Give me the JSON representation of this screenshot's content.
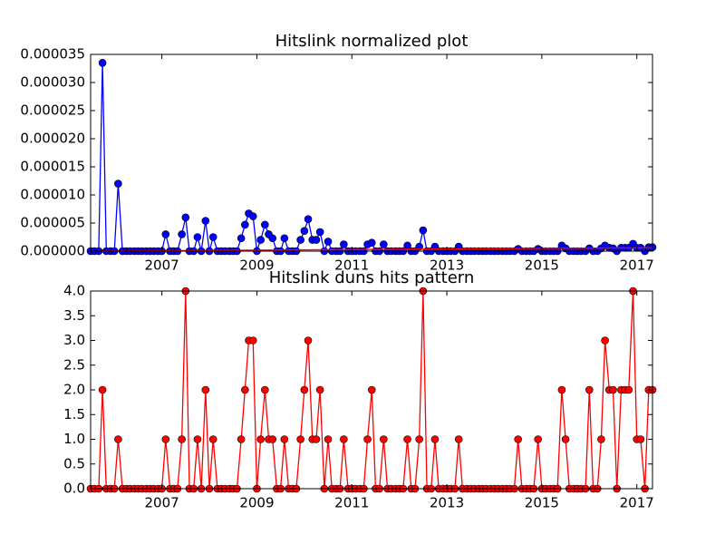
{
  "chart_data": [
    {
      "type": "line",
      "title": "Hitslink normalized plot",
      "x": [
        2005.5,
        2005.58,
        2005.67,
        2005.75,
        2005.83,
        2005.92,
        2006.0,
        2006.08,
        2006.17,
        2006.25,
        2006.33,
        2006.42,
        2006.5,
        2006.58,
        2006.67,
        2006.75,
        2006.83,
        2006.92,
        2007.0,
        2007.08,
        2007.17,
        2007.25,
        2007.33,
        2007.42,
        2007.5,
        2007.58,
        2007.67,
        2007.75,
        2007.83,
        2007.92,
        2008.0,
        2008.08,
        2008.17,
        2008.25,
        2008.33,
        2008.42,
        2008.5,
        2008.58,
        2008.67,
        2008.75,
        2008.83,
        2008.92,
        2009.0,
        2009.08,
        2009.17,
        2009.25,
        2009.33,
        2009.42,
        2009.5,
        2009.58,
        2009.67,
        2009.75,
        2009.83,
        2009.92,
        2010.0,
        2010.08,
        2010.17,
        2010.25,
        2010.33,
        2010.42,
        2010.5,
        2010.58,
        2010.67,
        2010.75,
        2010.83,
        2010.92,
        2011.0,
        2011.08,
        2011.17,
        2011.25,
        2011.33,
        2011.42,
        2011.5,
        2011.58,
        2011.67,
        2011.75,
        2011.83,
        2011.92,
        2012.0,
        2012.08,
        2012.17,
        2012.25,
        2012.33,
        2012.42,
        2012.5,
        2012.58,
        2012.67,
        2012.75,
        2012.83,
        2012.92,
        2013.0,
        2013.08,
        2013.17,
        2013.25,
        2013.33,
        2013.42,
        2013.5,
        2013.58,
        2013.67,
        2013.75,
        2013.83,
        2013.92,
        2014.0,
        2014.08,
        2014.17,
        2014.25,
        2014.33,
        2014.42,
        2014.5,
        2014.58,
        2014.67,
        2014.75,
        2014.83,
        2014.92,
        2015.0,
        2015.08,
        2015.17,
        2015.25,
        2015.33,
        2015.42,
        2015.5,
        2015.58,
        2015.67,
        2015.75,
        2015.83,
        2015.92,
        2016.0,
        2016.08,
        2016.17,
        2016.25,
        2016.33,
        2016.42,
        2016.5,
        2016.58,
        2016.67,
        2016.75,
        2016.83,
        2016.92,
        2017.0,
        2017.08,
        2017.17,
        2017.25,
        2017.33
      ],
      "series": [
        {
          "color": "#0000ff",
          "marker": true,
          "values": [
            0,
            0,
            0,
            3.35e-05,
            0,
            0,
            0,
            1.2e-05,
            0,
            0,
            0,
            0,
            0,
            0,
            0,
            0,
            0,
            0,
            0,
            3e-06,
            0,
            0,
            0,
            3e-06,
            6e-06,
            0,
            0,
            2.5e-06,
            0,
            5.4e-06,
            0,
            2.5e-06,
            0,
            0,
            0,
            0,
            0,
            0,
            2.3e-06,
            4.7e-06,
            6.7e-06,
            6.2e-06,
            0,
            2e-06,
            4.7e-06,
            3e-06,
            2.3e-06,
            0,
            0,
            2.3e-06,
            0,
            0,
            0,
            2e-06,
            3.6e-06,
            5.7e-06,
            2e-06,
            2e-06,
            3.4e-06,
            0,
            1.7e-06,
            0,
            0,
            0,
            1.2e-06,
            0,
            0,
            0,
            0,
            0,
            1.2e-06,
            1.5e-06,
            0,
            0,
            1.2e-06,
            0,
            0,
            0,
            0,
            0,
            1e-06,
            0,
            0,
            8e-07,
            3.7e-06,
            0,
            0,
            8e-07,
            0,
            0,
            0,
            0,
            0,
            8e-07,
            0,
            0,
            0,
            0,
            0,
            0,
            0,
            0,
            0,
            0,
            0,
            0,
            0,
            0,
            4e-07,
            0,
            0,
            0,
            0,
            4e-07,
            0,
            0,
            0,
            0,
            0,
            1e-06,
            5e-07,
            0,
            0,
            0,
            0,
            0,
            5e-07,
            0,
            0,
            5e-07,
            1e-06,
            6e-07,
            5e-07,
            0,
            6e-07,
            6e-07,
            6e-07,
            1.3e-06,
            6e-07,
            6e-07,
            0,
            7e-07,
            7e-07
          ]
        },
        {
          "color": "#ff0000",
          "marker": false,
          "x": [
            2005.5,
            2017.33
          ],
          "values": [
            0,
            6e-07
          ]
        }
      ],
      "xlim": [
        2005.5,
        2017.33
      ],
      "xticks": [
        2007,
        2009,
        2011,
        2013,
        2015,
        2017
      ],
      "ylim": [
        0,
        3.5e-05
      ],
      "yticks": [
        {
          "value": 0,
          "label": "0.000000"
        },
        {
          "value": 5e-06,
          "label": "0.000005"
        },
        {
          "value": 1e-05,
          "label": "0.000010"
        },
        {
          "value": 1.5e-05,
          "label": "0.000015"
        },
        {
          "value": 2e-05,
          "label": "0.000020"
        },
        {
          "value": 2.5e-05,
          "label": "0.000025"
        },
        {
          "value": 3e-05,
          "label": "0.000030"
        },
        {
          "value": 3.5e-05,
          "label": "0.000035"
        }
      ]
    },
    {
      "type": "line",
      "title": "Hitslink duns hits pattern",
      "x": [
        2005.5,
        2005.58,
        2005.67,
        2005.75,
        2005.83,
        2005.92,
        2006.0,
        2006.08,
        2006.17,
        2006.25,
        2006.33,
        2006.42,
        2006.5,
        2006.58,
        2006.67,
        2006.75,
        2006.83,
        2006.92,
        2007.0,
        2007.08,
        2007.17,
        2007.25,
        2007.33,
        2007.42,
        2007.5,
        2007.58,
        2007.67,
        2007.75,
        2007.83,
        2007.92,
        2008.0,
        2008.08,
        2008.17,
        2008.25,
        2008.33,
        2008.42,
        2008.5,
        2008.58,
        2008.67,
        2008.75,
        2008.83,
        2008.92,
        2009.0,
        2009.08,
        2009.17,
        2009.25,
        2009.33,
        2009.42,
        2009.5,
        2009.58,
        2009.67,
        2009.75,
        2009.83,
        2009.92,
        2010.0,
        2010.08,
        2010.17,
        2010.25,
        2010.33,
        2010.42,
        2010.5,
        2010.58,
        2010.67,
        2010.75,
        2010.83,
        2010.92,
        2011.0,
        2011.08,
        2011.17,
        2011.25,
        2011.33,
        2011.42,
        2011.5,
        2011.58,
        2011.67,
        2011.75,
        2011.83,
        2011.92,
        2012.0,
        2012.08,
        2012.17,
        2012.25,
        2012.33,
        2012.42,
        2012.5,
        2012.58,
        2012.67,
        2012.75,
        2012.83,
        2012.92,
        2013.0,
        2013.08,
        2013.17,
        2013.25,
        2013.33,
        2013.42,
        2013.5,
        2013.58,
        2013.67,
        2013.75,
        2013.83,
        2013.92,
        2014.0,
        2014.08,
        2014.17,
        2014.25,
        2014.33,
        2014.42,
        2014.5,
        2014.58,
        2014.67,
        2014.75,
        2014.83,
        2014.92,
        2015.0,
        2015.08,
        2015.17,
        2015.25,
        2015.33,
        2015.42,
        2015.5,
        2015.58,
        2015.67,
        2015.75,
        2015.83,
        2015.92,
        2016.0,
        2016.08,
        2016.17,
        2016.25,
        2016.33,
        2016.42,
        2016.5,
        2016.58,
        2016.67,
        2016.75,
        2016.83,
        2016.92,
        2017.0,
        2017.08,
        2017.17,
        2017.25,
        2017.33
      ],
      "series": [
        {
          "color": "#ff0000",
          "marker": true,
          "values": [
            0,
            0,
            0,
            2,
            0,
            0,
            0,
            1,
            0,
            0,
            0,
            0,
            0,
            0,
            0,
            0,
            0,
            0,
            0,
            1,
            0,
            0,
            0,
            1,
            4,
            0,
            0,
            1,
            0,
            2,
            0,
            1,
            0,
            0,
            0,
            0,
            0,
            0,
            1,
            2,
            3,
            3,
            0,
            1,
            2,
            1,
            1,
            0,
            0,
            1,
            0,
            0,
            0,
            1,
            2,
            3,
            1,
            1,
            2,
            0,
            1,
            0,
            0,
            0,
            1,
            0,
            0,
            0,
            0,
            0,
            1,
            2,
            0,
            0,
            1,
            0,
            0,
            0,
            0,
            0,
            1,
            0,
            0,
            1,
            4,
            0,
            0,
            1,
            0,
            0,
            0,
            0,
            0,
            1,
            0,
            0,
            0,
            0,
            0,
            0,
            0,
            0,
            0,
            0,
            0,
            0,
            0,
            0,
            1,
            0,
            0,
            0,
            0,
            1,
            0,
            0,
            0,
            0,
            0,
            2,
            1,
            0,
            0,
            0,
            0,
            0,
            2,
            0,
            0,
            1,
            3,
            2,
            2,
            0,
            2,
            2,
            2,
            4,
            1,
            1,
            0,
            2,
            2
          ]
        }
      ],
      "xlim": [
        2005.5,
        2017.33
      ],
      "xticks": [
        2007,
        2009,
        2011,
        2013,
        2015,
        2017
      ],
      "ylim": [
        0,
        4
      ],
      "yticks": [
        {
          "value": 0,
          "label": "0.0"
        },
        0.5,
        {
          "value": 1,
          "label": "1.0"
        },
        1.5,
        {
          "value": 2,
          "label": "2.0"
        },
        2.5,
        {
          "value": 3,
          "label": "3.0"
        },
        3.5,
        {
          "value": 4,
          "label": "4.0"
        }
      ]
    }
  ]
}
